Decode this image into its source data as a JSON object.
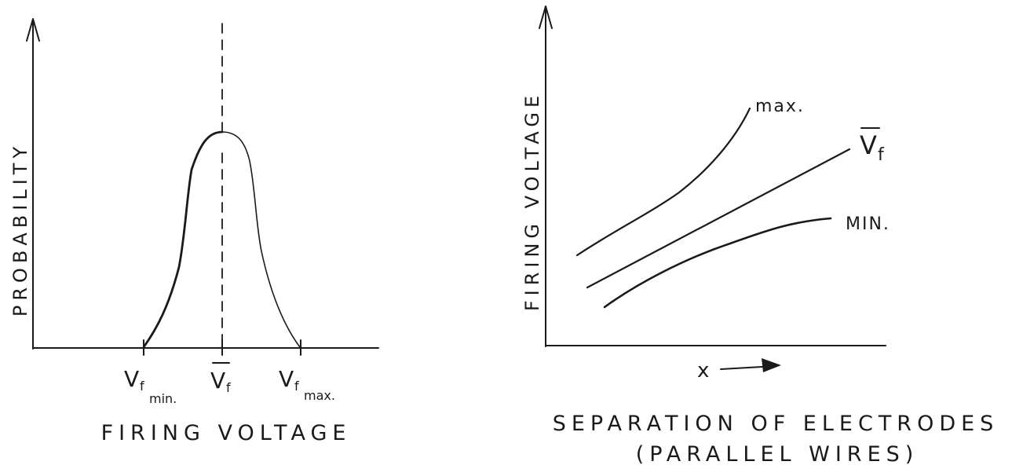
{
  "left_plot": {
    "y_axis_label": "PROBABILITY",
    "x_axis_label": "FIRING VOLTAGE",
    "tick_min_main": "V",
    "tick_min_sub_f": "f",
    "tick_min_sub": "min.",
    "tick_mean_main": "V",
    "tick_mean_sub_f": "f",
    "tick_max_main": "V",
    "tick_max_sub_f": "f",
    "tick_max_sub": "max."
  },
  "right_plot": {
    "y_axis_label": "FIRING VOLTAGE",
    "x_axis_symbol": "x",
    "curve_max_label": "max.",
    "curve_mean_main": "V",
    "curve_mean_sub": "f",
    "curve_min_label": "MIN.",
    "caption_line1": "SEPARATION OF ELECTRODES",
    "caption_line2": "(PARALLEL WIRES)"
  }
}
